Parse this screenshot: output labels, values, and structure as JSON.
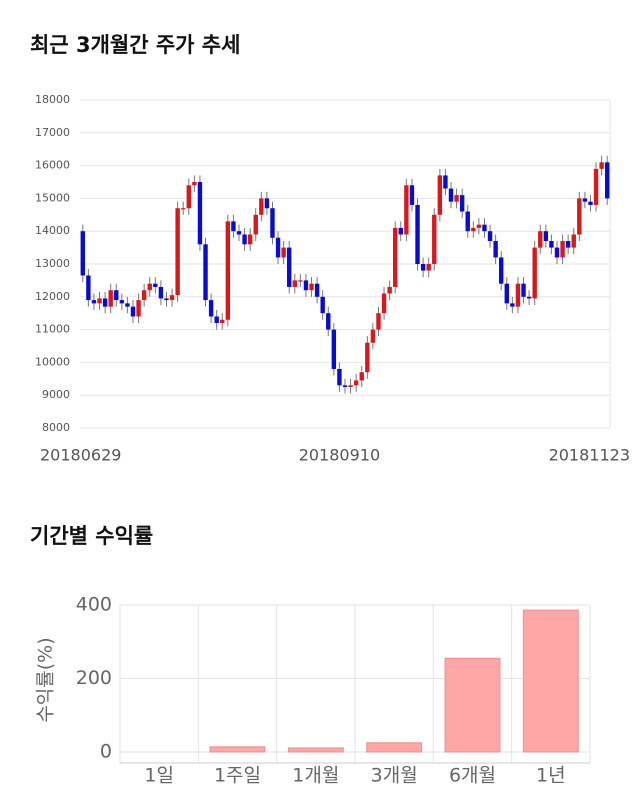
{
  "chart_data": [
    {
      "type": "candlestick",
      "title": "최근 3개월간 주가 추세",
      "categories": [
        "20180629",
        null,
        null,
        null,
        null,
        null,
        null,
        null,
        null,
        null,
        null,
        null,
        null,
        null,
        null,
        null,
        null,
        null,
        null,
        null,
        null,
        null,
        null,
        null,
        null,
        null,
        null,
        null,
        null,
        null,
        null,
        null,
        null,
        null,
        null,
        null,
        null,
        null,
        null,
        null,
        null,
        null,
        null,
        null,
        null,
        null,
        "20180910",
        null,
        null,
        null,
        null,
        null,
        null,
        null,
        null,
        null,
        null,
        null,
        null,
        null,
        null,
        null,
        null,
        null,
        null,
        null,
        null,
        null,
        null,
        null,
        null,
        null,
        null,
        null,
        null,
        null,
        null,
        null,
        null,
        null,
        null,
        null,
        null,
        null,
        null,
        null,
        null,
        null,
        null,
        null,
        null,
        null,
        null,
        null,
        "20181123"
      ],
      "open": [
        14000,
        12650,
        11900,
        11800,
        11950,
        11700,
        12200,
        11900,
        11800,
        11700,
        11400,
        11900,
        12200,
        12400,
        12300,
        11950,
        11900,
        12050,
        14700,
        14700,
        15400,
        15500,
        13600,
        11900,
        11400,
        11200,
        11300,
        14300,
        14000,
        13900,
        13600,
        13900,
        14500,
        15000,
        14700,
        13800,
        13200,
        13500,
        12300,
        12500,
        12500,
        12200,
        12400,
        12000,
        11500,
        11000,
        9800,
        9300,
        9250,
        9300,
        9450,
        9700,
        10600,
        11000,
        11500,
        12100,
        12300,
        14100,
        13900,
        15400,
        14800,
        13000,
        12800,
        13000,
        14500,
        15700,
        15300,
        14900,
        15100,
        14600,
        14000,
        14100,
        14200,
        14000,
        13700,
        13200,
        12400,
        11800,
        11700,
        12400,
        12000,
        11950,
        13500,
        14000,
        13700,
        13500,
        13200,
        13700,
        13500,
        13900,
        15000,
        14900,
        14800,
        15900,
        16100
      ],
      "high": [
        14200,
        12850,
        12100,
        12150,
        12150,
        12400,
        12400,
        12100,
        12000,
        11900,
        12100,
        12400,
        12600,
        12600,
        12500,
        12150,
        12250,
        14900,
        14900,
        15600,
        15700,
        15700,
        13800,
        12100,
        11600,
        11500,
        14500,
        14500,
        14200,
        14100,
        14100,
        14700,
        15200,
        15200,
        14900,
        14000,
        13700,
        13700,
        12700,
        12700,
        12700,
        12600,
        12600,
        12200,
        11700,
        11200,
        10000,
        9500,
        9500,
        9650,
        9900,
        10800,
        11200,
        11700,
        12300,
        12500,
        14300,
        14300,
        15600,
        15600,
        15000,
        13200,
        13200,
        14700,
        15900,
        15900,
        15500,
        15300,
        15300,
        14800,
        14300,
        14400,
        14400,
        14200,
        13900,
        13400,
        12600,
        12000,
        12600,
        12600,
        12200,
        13700,
        14200,
        14200,
        13900,
        13700,
        13900,
        13900,
        14100,
        15200,
        15200,
        15100,
        16100,
        16300,
        16300
      ],
      "low": [
        12450,
        11700,
        11600,
        11600,
        11500,
        11500,
        11700,
        11600,
        11500,
        11200,
        11200,
        11700,
        12000,
        12100,
        11750,
        11700,
        11700,
        11850,
        14500,
        14500,
        15200,
        13400,
        11700,
        11200,
        11000,
        11000,
        11100,
        13800,
        13700,
        13400,
        13400,
        13700,
        14300,
        14500,
        13600,
        13000,
        13000,
        12100,
        12100,
        12300,
        12000,
        12000,
        11800,
        11300,
        10800,
        9600,
        9100,
        9050,
        9050,
        9100,
        9250,
        9500,
        10400,
        10800,
        11300,
        11900,
        12100,
        13700,
        13700,
        14600,
        12800,
        12600,
        12600,
        12800,
        14300,
        15100,
        14700,
        14700,
        14400,
        13800,
        13800,
        13900,
        13800,
        13500,
        13000,
        12200,
        11600,
        11500,
        11500,
        11800,
        11750,
        11750,
        13300,
        13500,
        13300,
        13000,
        13000,
        13300,
        13300,
        13700,
        14700,
        14600,
        14600,
        15700,
        14800
      ],
      "close": [
        12650,
        11900,
        11800,
        11950,
        11700,
        12200,
        11900,
        11800,
        11700,
        11400,
        11900,
        12200,
        12400,
        12300,
        11950,
        11900,
        12050,
        14700,
        14700,
        15400,
        15500,
        13600,
        11900,
        11400,
        11200,
        11300,
        14300,
        14000,
        13900,
        13600,
        13900,
        14500,
        15000,
        14700,
        13800,
        13200,
        13500,
        12300,
        12500,
        12500,
        12200,
        12400,
        12000,
        11500,
        11000,
        9800,
        9300,
        9250,
        9300,
        9450,
        9700,
        10600,
        11000,
        11500,
        12100,
        12300,
        14100,
        13900,
        15400,
        14800,
        13000,
        12800,
        13000,
        14500,
        15700,
        15300,
        14900,
        15100,
        14600,
        14000,
        14100,
        14200,
        14000,
        13700,
        13200,
        12400,
        11800,
        11700,
        12400,
        12000,
        11950,
        13500,
        14000,
        13700,
        13500,
        13200,
        13700,
        13500,
        13900,
        15000,
        14900,
        14800,
        15900,
        16100,
        15000
      ],
      "up_color": "#d7191c",
      "down_color": "#0a0ccc",
      "ylim": [
        8000,
        18000
      ],
      "yticks": [
        8000,
        9000,
        10000,
        11000,
        12000,
        13000,
        14000,
        15000,
        16000,
        17000,
        18000
      ],
      "grid": true
    },
    {
      "type": "bar",
      "title": "기간별 수익률",
      "ylabel": "수익률(%)",
      "categories": [
        "1일",
        "1주일",
        "1개월",
        "3개월",
        "6개월",
        "1년"
      ],
      "values": [
        0,
        14,
        11,
        25,
        255,
        386
      ],
      "color": "#ffa6a6",
      "ylim": [
        -30,
        400
      ],
      "yticks": [
        0,
        200,
        400
      ],
      "grid": true
    }
  ]
}
